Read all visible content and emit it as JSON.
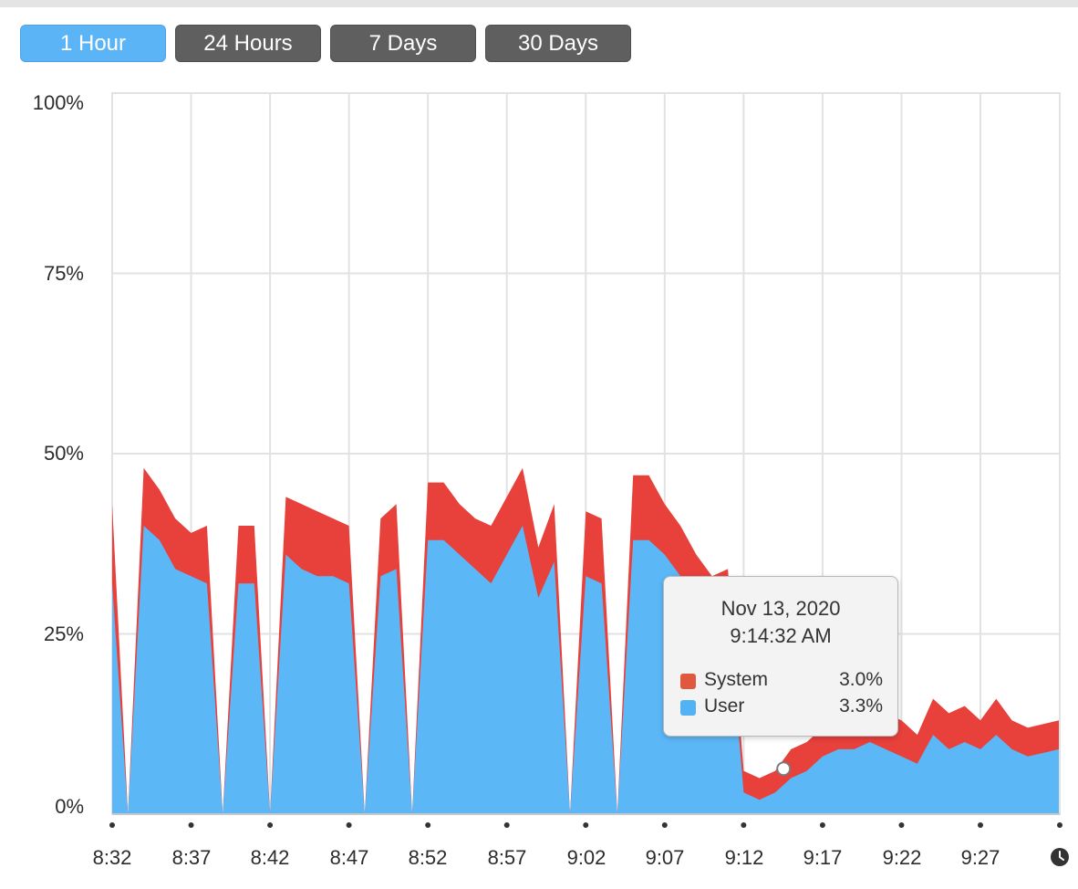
{
  "range_buttons": [
    {
      "label": "1 Hour",
      "active": true
    },
    {
      "label": "24 Hours",
      "active": false
    },
    {
      "label": "7 Days",
      "active": false
    },
    {
      "label": "30 Days",
      "active": false
    }
  ],
  "colors": {
    "system": "#e8403a",
    "user": "#5bb7f6",
    "active_button": "#5ab4f5",
    "button": "#5f5f5f",
    "grid": "#e2e2e2"
  },
  "tooltip": {
    "date": "Nov 13, 2020",
    "time": "9:14:32 AM",
    "rows": [
      {
        "name": "System",
        "value": "3.0%",
        "color": "#e0583d"
      },
      {
        "name": "User",
        "value": "3.3%",
        "color": "#52b2f3"
      }
    ]
  },
  "chart_data": {
    "type": "area",
    "stacked": true,
    "y_ticks": [
      "100%",
      "75%",
      "50%",
      "25%",
      "0%"
    ],
    "ylim": [
      0,
      100
    ],
    "x_ticks": [
      "8:32",
      "8:37",
      "8:42",
      "8:47",
      "8:52",
      "8:57",
      "9:02",
      "9:07",
      "9:12",
      "9:17",
      "9:22",
      "9:27"
    ],
    "grid": true,
    "x": [
      "8:32",
      "8:33",
      "8:34",
      "8:35",
      "8:36",
      "8:37",
      "8:38",
      "8:39",
      "8:40",
      "8:41",
      "8:42",
      "8:43",
      "8:44",
      "8:45",
      "8:46",
      "8:47",
      "8:48",
      "8:49",
      "8:50",
      "8:51",
      "8:52",
      "8:53",
      "8:54",
      "8:55",
      "8:56",
      "8:57",
      "8:58",
      "8:59",
      "9:00",
      "9:01",
      "9:02",
      "9:03",
      "9:04",
      "9:05",
      "9:06",
      "9:07",
      "9:08",
      "9:09",
      "9:10",
      "9:11",
      "9:12",
      "9:13",
      "9:14",
      "9:15",
      "9:16",
      "9:17",
      "9:18",
      "9:19",
      "9:20",
      "9:21",
      "9:22",
      "9:23",
      "9:24",
      "9:25",
      "9:26",
      "9:27",
      "9:28",
      "9:29",
      "9:30",
      "9:31"
    ],
    "series": [
      {
        "name": "User",
        "values": [
          32,
          0,
          40,
          38,
          34,
          33,
          32,
          0,
          32,
          32,
          0,
          36,
          34,
          33,
          33,
          32,
          0,
          33,
          34,
          0,
          38,
          38,
          36,
          34,
          32,
          36,
          40,
          30,
          35,
          0,
          33,
          32,
          0,
          38,
          38,
          36,
          33,
          30,
          28,
          29,
          3,
          2,
          3,
          5,
          6,
          8,
          9,
          9,
          10,
          9,
          8,
          7,
          11,
          9,
          10,
          9,
          11,
          9,
          8,
          9
        ]
      },
      {
        "name": "System",
        "values": [
          11,
          0,
          8,
          7,
          7,
          6,
          8,
          0,
          8,
          8,
          0,
          8,
          9,
          9,
          8,
          8,
          0,
          8,
          9,
          0,
          8,
          8,
          7,
          7,
          8,
          8,
          8,
          7,
          8,
          0,
          9,
          9,
          0,
          9,
          9,
          7,
          7,
          6,
          5,
          5,
          3,
          3,
          3,
          4,
          4,
          4,
          4,
          4,
          5,
          5,
          5,
          4,
          5,
          5,
          5,
          4,
          5,
          4,
          4,
          4
        ]
      }
    ],
    "marker": {
      "x": "9:14:32",
      "user": 3.3,
      "system": 3.0
    }
  }
}
